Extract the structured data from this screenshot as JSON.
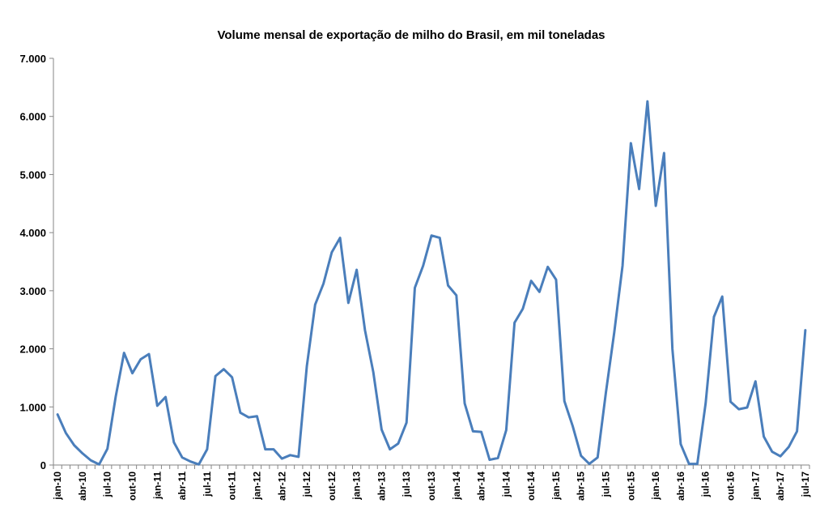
{
  "chart_data": {
    "type": "line",
    "title": "Volume mensal de exportação de milho do Brasil, em mil toneladas",
    "xlabel": "",
    "ylabel": "",
    "ylim": [
      0,
      7000
    ],
    "yticks": [
      0,
      1000,
      2000,
      3000,
      4000,
      5000,
      6000,
      7000
    ],
    "ytick_labels": [
      "0",
      "1.000",
      "2.000",
      "3.000",
      "4.000",
      "5.000",
      "6.000",
      "7.000"
    ],
    "grid": false,
    "legend": "none",
    "x_tick_step": 3,
    "months": [
      "jan-10",
      "fev-10",
      "mar-10",
      "abr-10",
      "mai-10",
      "jun-10",
      "jul-10",
      "ago-10",
      "set-10",
      "out-10",
      "nov-10",
      "dez-10",
      "jan-11",
      "fev-11",
      "mar-11",
      "abr-11",
      "mai-11",
      "jun-11",
      "jul-11",
      "ago-11",
      "set-11",
      "out-11",
      "nov-11",
      "dez-11",
      "jan-12",
      "fev-12",
      "mar-12",
      "abr-12",
      "mai-12",
      "jun-12",
      "jul-12",
      "ago-12",
      "set-12",
      "out-12",
      "nov-12",
      "dez-12",
      "jan-13",
      "fev-13",
      "mar-13",
      "abr-13",
      "mai-13",
      "jun-13",
      "jul-13",
      "ago-13",
      "set-13",
      "out-13",
      "nov-13",
      "dez-13",
      "jan-14",
      "fev-14",
      "mar-14",
      "abr-14",
      "mai-14",
      "jun-14",
      "jul-14",
      "ago-14",
      "set-14",
      "out-14",
      "nov-14",
      "dez-14",
      "jan-15",
      "fev-15",
      "mar-15",
      "abr-15",
      "mai-15",
      "jun-15",
      "jul-15",
      "ago-15",
      "set-15",
      "out-15",
      "nov-15",
      "dez-15",
      "jan-16",
      "fev-16",
      "mar-16",
      "abr-16",
      "mai-16",
      "jun-16",
      "jul-16",
      "ago-16",
      "set-16",
      "out-16",
      "nov-16",
      "dez-16",
      "jan-17",
      "fev-17",
      "mar-17",
      "abr-17",
      "mai-17",
      "jun-17",
      "jul-17"
    ],
    "series": [
      {
        "color": "#4a7ebb",
        "values": [
          870,
          550,
          340,
          200,
          80,
          10,
          280,
          1180,
          1930,
          1580,
          1820,
          1910,
          1020,
          1170,
          390,
          130,
          60,
          10,
          270,
          1530,
          1650,
          1510,
          900,
          820,
          840,
          270,
          270,
          110,
          170,
          140,
          1700,
          2760,
          3120,
          3660,
          3910,
          2790,
          3360,
          2320,
          1600,
          610,
          270,
          370,
          730,
          3050,
          3430,
          3950,
          3910,
          3090,
          2920,
          1060,
          580,
          570,
          90,
          120,
          600,
          2450,
          2690,
          3170,
          2980,
          3410,
          3190,
          1100,
          670,
          160,
          20,
          130,
          1250,
          2280,
          3430,
          5540,
          4750,
          6260,
          4460,
          5370,
          2000,
          360,
          20,
          20,
          1060,
          2550,
          2900,
          1090,
          960,
          990,
          1440,
          490,
          230,
          150,
          310,
          580,
          2320
        ]
      }
    ]
  }
}
